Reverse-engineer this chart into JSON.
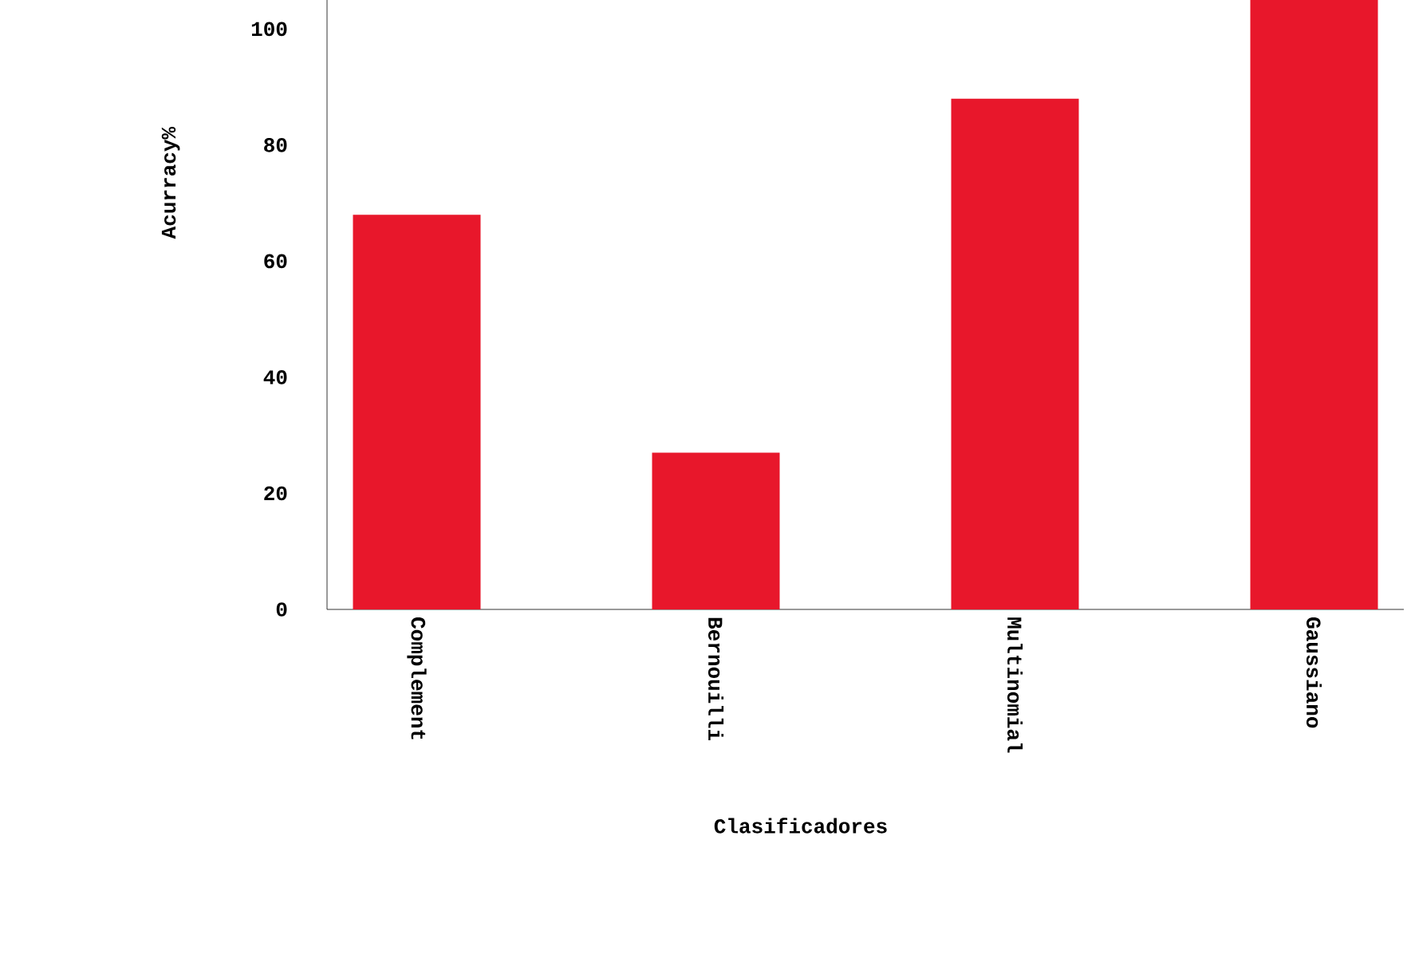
{
  "chart_data": {
    "type": "bar",
    "xlabel": "Clasificadores",
    "ylabel": "Acurracy%",
    "categories": [
      "Complement",
      "Bernouilli",
      "Multinomial",
      "Gaussiano"
    ],
    "values": [
      68,
      27,
      88,
      105
    ],
    "color": "#e8172b",
    "ylim": [
      0,
      105
    ],
    "yticks": [
      0,
      20,
      40,
      60,
      80,
      100
    ],
    "grid": false
  }
}
